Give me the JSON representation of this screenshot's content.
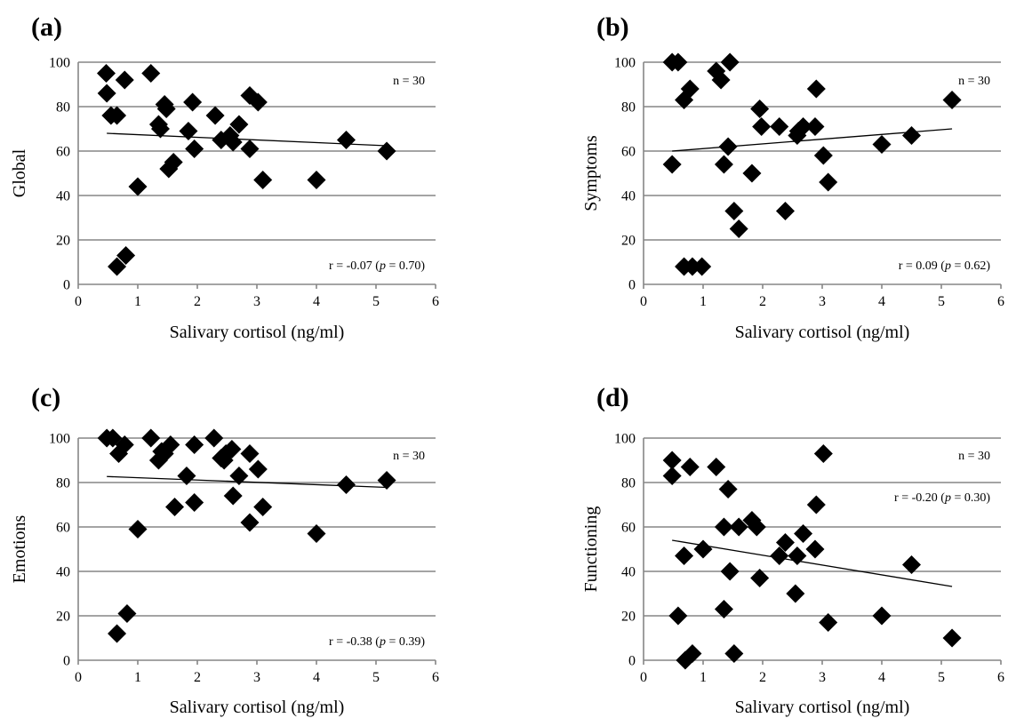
{
  "chart_data": [
    {
      "type": "scatter",
      "panel_label": "(a)",
      "xlabel": "Salivary cortisol (ng/ml)",
      "ylabel": "Global",
      "xlim": [
        0,
        6
      ],
      "ylim": [
        0,
        100
      ],
      "xticks": [
        "0",
        "1",
        "2",
        "3",
        "4",
        "5",
        "6"
      ],
      "yticks": [
        "0",
        "20",
        "40",
        "60",
        "80",
        "100"
      ],
      "n_text": "n = 30",
      "stat_prefix": "r = -0.07 (",
      "stat_p": "p",
      "stat_suffix": " = 0.70)",
      "grid": "horizontal",
      "trendline": {
        "x": [
          0.48,
          5.18
        ],
        "y": [
          68,
          62.4
        ]
      },
      "points": [
        [
          0.47,
          95
        ],
        [
          0.48,
          86
        ],
        [
          0.55,
          76
        ],
        [
          0.65,
          76
        ],
        [
          0.78,
          92
        ],
        [
          0.65,
          8
        ],
        [
          0.8,
          13
        ],
        [
          1.0,
          44
        ],
        [
          1.22,
          95
        ],
        [
          1.35,
          72
        ],
        [
          1.38,
          70
        ],
        [
          1.45,
          81
        ],
        [
          1.48,
          79
        ],
        [
          1.52,
          52
        ],
        [
          1.6,
          55
        ],
        [
          1.85,
          69
        ],
        [
          1.92,
          82
        ],
        [
          1.95,
          61
        ],
        [
          2.3,
          76
        ],
        [
          2.4,
          65
        ],
        [
          2.55,
          67
        ],
        [
          2.6,
          64
        ],
        [
          2.7,
          72
        ],
        [
          2.88,
          85
        ],
        [
          2.88,
          61
        ],
        [
          3.02,
          82
        ],
        [
          3.1,
          47
        ],
        [
          4.0,
          47
        ],
        [
          4.5,
          65
        ],
        [
          5.18,
          60
        ]
      ]
    },
    {
      "type": "scatter",
      "panel_label": "(b)",
      "xlabel": "Salivary cortisol (ng/ml)",
      "ylabel": "Symptoms",
      "xlim": [
        0,
        6
      ],
      "ylim": [
        0,
        100
      ],
      "xticks": [
        "0",
        "1",
        "2",
        "3",
        "4",
        "5",
        "6"
      ],
      "yticks": [
        "0",
        "20",
        "40",
        "60",
        "80",
        "100"
      ],
      "n_text": "n = 30",
      "stat_prefix": "r = 0.09 (",
      "stat_p": "p",
      "stat_suffix": " = 0.62)",
      "grid": "horizontal",
      "trendline": {
        "x": [
          0.48,
          5.18
        ],
        "y": [
          60,
          70
        ]
      },
      "points": [
        [
          0.48,
          100
        ],
        [
          0.58,
          100
        ],
        [
          0.48,
          54
        ],
        [
          0.68,
          83
        ],
        [
          0.78,
          88
        ],
        [
          0.68,
          8
        ],
        [
          0.82,
          8
        ],
        [
          0.98,
          8
        ],
        [
          1.22,
          96
        ],
        [
          1.3,
          92
        ],
        [
          1.45,
          100
        ],
        [
          1.35,
          54
        ],
        [
          1.42,
          62
        ],
        [
          1.52,
          33
        ],
        [
          1.6,
          25
        ],
        [
          1.82,
          50
        ],
        [
          1.95,
          79
        ],
        [
          1.98,
          71
        ],
        [
          2.28,
          71
        ],
        [
          2.38,
          33
        ],
        [
          2.58,
          67
        ],
        [
          2.68,
          71
        ],
        [
          2.88,
          71
        ],
        [
          2.9,
          88
        ],
        [
          3.02,
          58
        ],
        [
          3.1,
          46
        ],
        [
          4.0,
          63
        ],
        [
          4.5,
          67
        ],
        [
          5.18,
          83
        ],
        [
          2.6,
          69
        ]
      ]
    },
    {
      "type": "scatter",
      "panel_label": "(c)",
      "xlabel": "Salivary cortisol (ng/ml)",
      "ylabel": "Emotions",
      "xlim": [
        0,
        6
      ],
      "ylim": [
        0,
        100
      ],
      "xticks": [
        "0",
        "1",
        "2",
        "3",
        "4",
        "5",
        "6"
      ],
      "yticks": [
        "0",
        "20",
        "40",
        "60",
        "80",
        "100"
      ],
      "n_text": "n = 30",
      "stat_prefix": "r = -0.38 (",
      "stat_p": "p",
      "stat_suffix": " = 0.39)",
      "grid": "horizontal",
      "trendline": {
        "x": [
          0.48,
          5.18
        ],
        "y": [
          82.7,
          77.8
        ]
      },
      "points": [
        [
          0.48,
          100
        ],
        [
          0.58,
          100
        ],
        [
          0.68,
          93
        ],
        [
          0.78,
          97
        ],
        [
          0.65,
          12
        ],
        [
          0.82,
          21
        ],
        [
          1.0,
          59
        ],
        [
          1.22,
          100
        ],
        [
          1.35,
          90
        ],
        [
          1.45,
          93
        ],
        [
          1.55,
          97
        ],
        [
          1.62,
          69
        ],
        [
          1.82,
          83
        ],
        [
          1.95,
          97
        ],
        [
          1.95,
          71
        ],
        [
          2.28,
          100
        ],
        [
          2.4,
          91
        ],
        [
          2.48,
          93
        ],
        [
          2.58,
          95
        ],
        [
          2.6,
          74
        ],
        [
          2.7,
          83
        ],
        [
          2.88,
          93
        ],
        [
          2.88,
          62
        ],
        [
          3.02,
          86
        ],
        [
          3.1,
          69
        ],
        [
          4.0,
          57
        ],
        [
          4.5,
          79
        ],
        [
          5.18,
          81
        ],
        [
          1.4,
          94
        ],
        [
          2.45,
          90
        ]
      ]
    },
    {
      "type": "scatter",
      "panel_label": "(d)",
      "xlabel": "Salivary cortisol (ng/ml)",
      "ylabel": "Functioning",
      "xlim": [
        0,
        6
      ],
      "ylim": [
        0,
        100
      ],
      "xticks": [
        "0",
        "1",
        "2",
        "3",
        "4",
        "5",
        "6"
      ],
      "yticks": [
        "0",
        "20",
        "40",
        "60",
        "80",
        "100"
      ],
      "n_text": "n = 30",
      "stat_prefix": "r = -0.20 (",
      "stat_p": "p",
      "stat_suffix": " = 0.30)",
      "grid": "horizontal",
      "trendline": {
        "x": [
          0.48,
          5.18
        ],
        "y": [
          54,
          33.2
        ]
      },
      "points": [
        [
          0.48,
          90
        ],
        [
          0.48,
          83
        ],
        [
          0.78,
          87
        ],
        [
          0.58,
          20
        ],
        [
          0.68,
          47
        ],
        [
          0.7,
          0
        ],
        [
          0.82,
          3
        ],
        [
          1.0,
          50
        ],
        [
          1.22,
          87
        ],
        [
          1.35,
          60
        ],
        [
          1.42,
          77
        ],
        [
          1.45,
          40
        ],
        [
          1.35,
          23
        ],
        [
          1.52,
          3
        ],
        [
          1.6,
          60
        ],
        [
          1.82,
          63
        ],
        [
          1.9,
          60
        ],
        [
          1.95,
          37
        ],
        [
          2.28,
          47
        ],
        [
          2.38,
          53
        ],
        [
          2.55,
          30
        ],
        [
          2.58,
          47
        ],
        [
          2.68,
          57
        ],
        [
          2.88,
          50
        ],
        [
          2.9,
          70
        ],
        [
          3.02,
          93
        ],
        [
          3.1,
          17
        ],
        [
          4.0,
          20
        ],
        [
          4.5,
          43
        ],
        [
          5.18,
          10
        ]
      ]
    }
  ]
}
